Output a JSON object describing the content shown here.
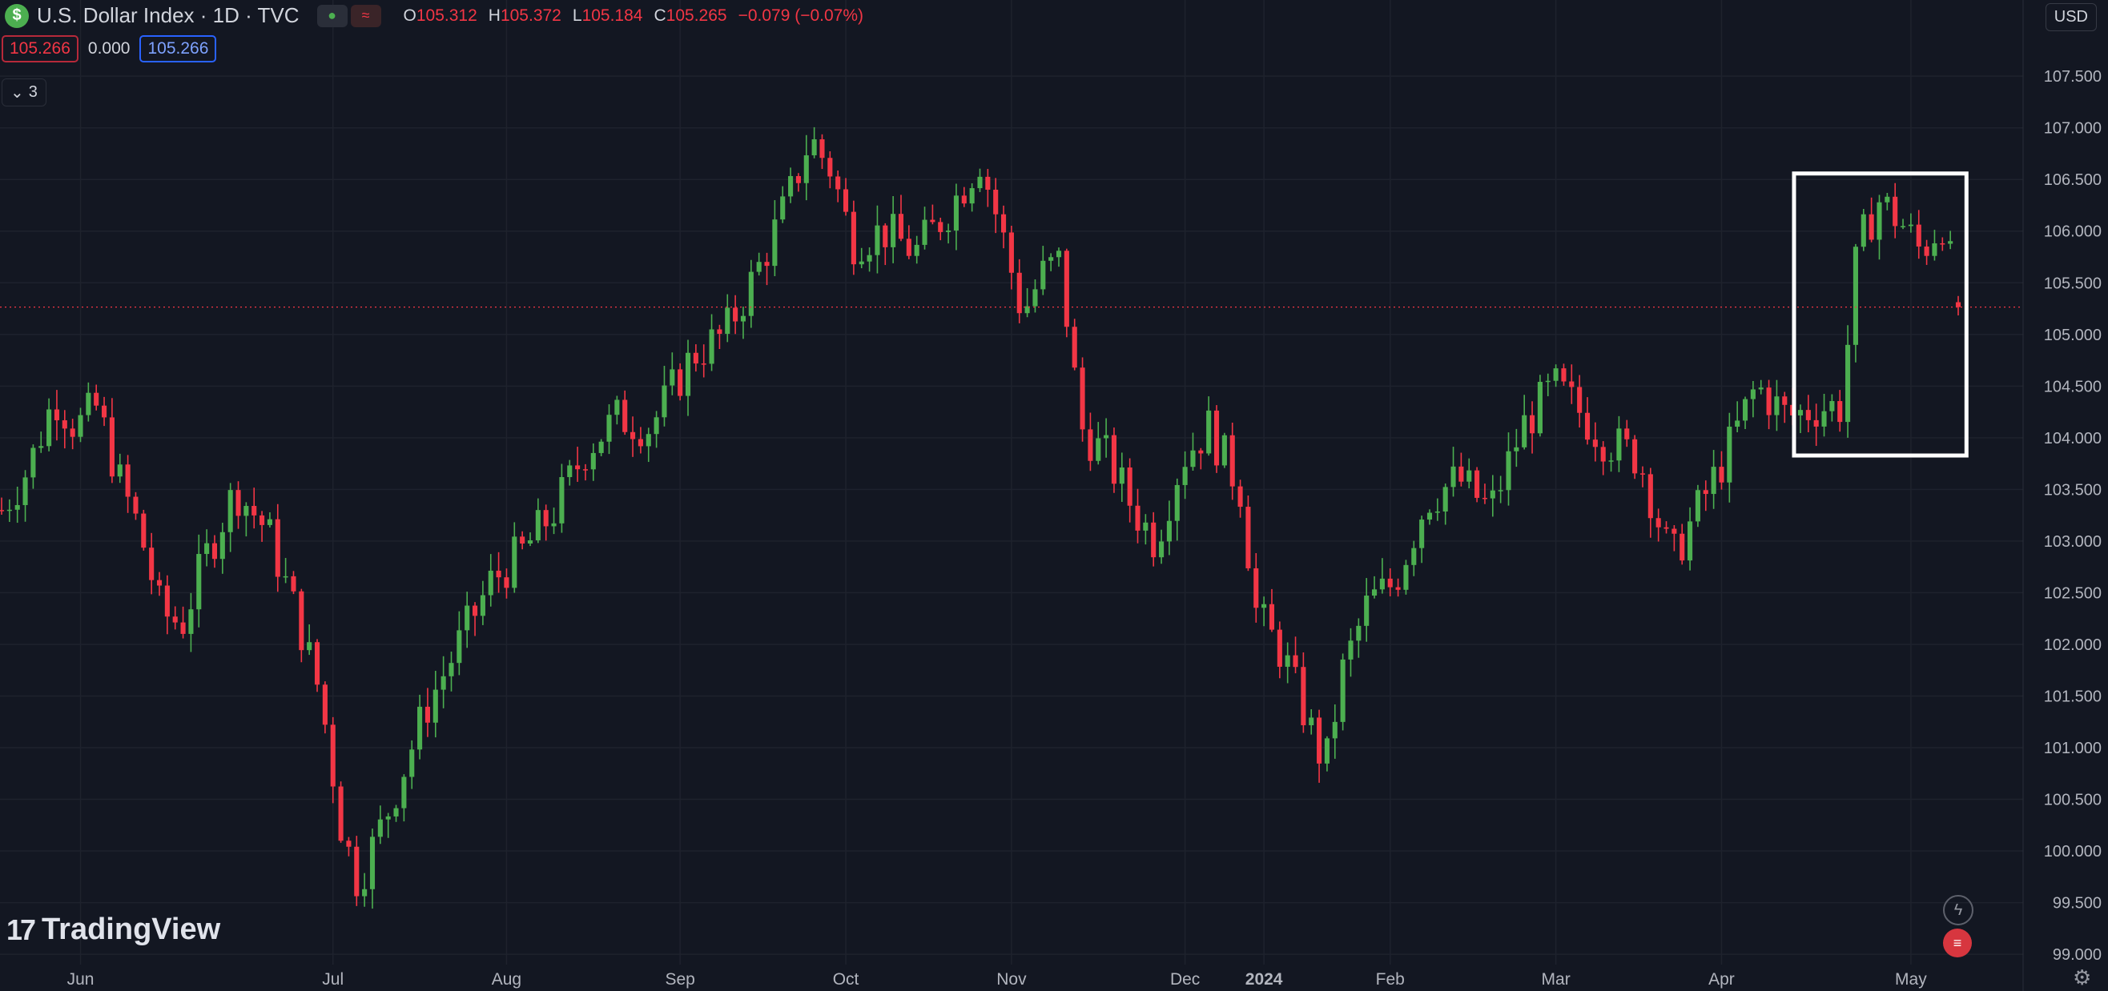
{
  "header": {
    "symbol_icon": "dollar-icon",
    "title": "U.S. Dollar Index · 1D · TVC",
    "ohlc": {
      "o_label": "O",
      "o": "105.312",
      "h_label": "H",
      "h": "105.372",
      "l_label": "L",
      "l": "105.184",
      "c_label": "C",
      "c": "105.265",
      "change": "−0.079 (−0.07%)"
    },
    "bid": "105.266",
    "spread": "0.000",
    "ask": "105.266",
    "indicators_toggle": "3",
    "currency": "USD"
  },
  "branding": {
    "logo_text": "TradingView"
  },
  "colors": {
    "up": "#26a69a",
    "up_candle": "#4caf50",
    "down": "#f23645",
    "background": "#131722",
    "grid": "#1e222d"
  },
  "chart_data": {
    "type": "candlestick",
    "y_ticks": [
      "99.000",
      "99.500",
      "100.000",
      "100.500",
      "101.000",
      "101.500",
      "102.000",
      "102.500",
      "103.000",
      "103.500",
      "104.000",
      "104.500",
      "105.000",
      "105.500",
      "106.000",
      "106.500",
      "107.000",
      "107.500"
    ],
    "ylim": [
      98.9,
      107.85
    ],
    "x_labels": [
      "Jun",
      "Jul",
      "Aug",
      "Sep",
      "Oct",
      "Nov",
      "Dec",
      "2024",
      "Feb",
      "Mar",
      "Apr",
      "May"
    ],
    "last_price": "105.265",
    "highlight_box": {
      "from_candle": 228,
      "to_candle": 246
    },
    "candles": []
  }
}
